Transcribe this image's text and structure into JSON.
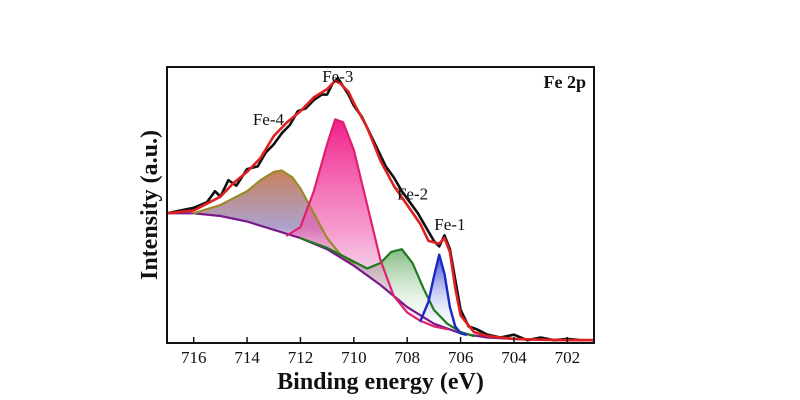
{
  "chart_data": {
    "type": "line",
    "title": "Fe 2p",
    "xlabel": "Binding energy (eV)",
    "ylabel": "Intensity (a.u.)",
    "x_reversed": true,
    "xlim": [
      717,
      701
    ],
    "ylim": [
      0,
      1
    ],
    "y_ticks_labeled": false,
    "xticks": [
      716,
      714,
      712,
      710,
      708,
      706,
      704,
      702
    ],
    "xtick_labels": [
      "716",
      "714",
      "712",
      "710",
      "708",
      "706",
      "704",
      "702"
    ],
    "colors": {
      "raw": "#111111",
      "envelope": "#e02020",
      "background": "#7a1a8a",
      "fe1": "#1a28c8",
      "fe2": "#1e7a1e",
      "fe3": "#e0206e",
      "fe4": "#9a8a2a"
    },
    "annotations": [
      {
        "text": "Fe-4",
        "x": 713.2,
        "y": 0.79
      },
      {
        "text": "Fe-3",
        "x": 710.6,
        "y": 0.945
      },
      {
        "text": "Fe-2",
        "x": 707.8,
        "y": 0.52
      },
      {
        "text": "Fe-1",
        "x": 706.4,
        "y": 0.41
      }
    ],
    "series": [
      {
        "role": "background",
        "x": [
          717,
          716,
          715,
          714,
          713,
          712,
          711,
          710,
          709,
          708,
          707,
          706,
          705,
          704,
          703,
          702,
          701
        ],
        "y": [
          0.47,
          0.47,
          0.46,
          0.44,
          0.41,
          0.38,
          0.34,
          0.28,
          0.21,
          0.13,
          0.07,
          0.035,
          0.02,
          0.015,
          0.012,
          0.01,
          0.01
        ]
      },
      {
        "role": "Fe-1",
        "x": [
          707.5,
          707.2,
          707.0,
          706.8,
          706.6,
          706.4,
          706.2,
          706.0,
          705.8
        ],
        "y": [
          0.08,
          0.15,
          0.24,
          0.32,
          0.25,
          0.13,
          0.06,
          0.035,
          0.03
        ]
      },
      {
        "role": "Fe-2",
        "x": [
          712,
          711,
          710,
          709.5,
          709,
          708.6,
          708.2,
          707.8,
          707.4,
          707,
          706.5,
          706,
          705.5
        ],
        "y": [
          0.38,
          0.345,
          0.295,
          0.27,
          0.29,
          0.33,
          0.34,
          0.29,
          0.2,
          0.12,
          0.07,
          0.04,
          0.025
        ]
      },
      {
        "role": "Fe-3",
        "x": [
          712.5,
          712,
          711.5,
          711,
          710.7,
          710.4,
          710,
          709.5,
          709,
          708.5,
          708,
          707.5,
          707,
          706.5
        ],
        "y": [
          0.39,
          0.42,
          0.55,
          0.72,
          0.81,
          0.8,
          0.7,
          0.5,
          0.3,
          0.17,
          0.11,
          0.08,
          0.06,
          0.05
        ]
      },
      {
        "role": "Fe-4",
        "x": [
          716,
          715,
          714,
          713.5,
          713,
          712.7,
          712.3,
          712,
          711.5,
          711,
          710.5,
          710
        ],
        "y": [
          0.47,
          0.5,
          0.55,
          0.59,
          0.62,
          0.625,
          0.6,
          0.56,
          0.47,
          0.38,
          0.32,
          0.29
        ]
      },
      {
        "role": "envelope",
        "x": [
          717,
          716,
          715,
          714.5,
          714,
          713.5,
          713,
          712.5,
          712,
          711.5,
          711,
          710.7,
          710.5,
          710.2,
          710,
          709.5,
          709,
          708.5,
          708,
          707.5,
          707.2,
          706.8,
          706.6,
          706.4,
          706.2,
          706,
          705.5,
          705,
          704,
          703,
          702,
          701
        ],
        "y": [
          0.47,
          0.48,
          0.53,
          0.58,
          0.62,
          0.67,
          0.75,
          0.8,
          0.84,
          0.89,
          0.92,
          0.95,
          0.94,
          0.91,
          0.87,
          0.78,
          0.66,
          0.57,
          0.5,
          0.43,
          0.37,
          0.36,
          0.38,
          0.33,
          0.2,
          0.1,
          0.04,
          0.025,
          0.015,
          0.012,
          0.01,
          0.01
        ]
      },
      {
        "role": "raw",
        "x": [
          717,
          716.5,
          716,
          715.5,
          715.2,
          715,
          714.7,
          714.4,
          714,
          713.6,
          713.3,
          713,
          712.7,
          712.4,
          712.1,
          711.8,
          711.5,
          711.2,
          711,
          710.8,
          710.6,
          710.4,
          710.2,
          710,
          709.7,
          709.4,
          709.1,
          708.8,
          708.5,
          708.2,
          707.9,
          707.6,
          707.3,
          707,
          706.8,
          706.6,
          706.4,
          706.2,
          706,
          705.7,
          705.4,
          705,
          704.5,
          704,
          703.5,
          703,
          702.5,
          702,
          701.5,
          701
        ],
        "y": [
          0.47,
          0.48,
          0.49,
          0.51,
          0.55,
          0.53,
          0.59,
          0.57,
          0.63,
          0.64,
          0.69,
          0.72,
          0.76,
          0.79,
          0.84,
          0.85,
          0.88,
          0.9,
          0.9,
          0.94,
          0.96,
          0.93,
          0.9,
          0.86,
          0.82,
          0.76,
          0.7,
          0.64,
          0.6,
          0.55,
          0.51,
          0.47,
          0.42,
          0.37,
          0.35,
          0.39,
          0.34,
          0.23,
          0.12,
          0.06,
          0.05,
          0.03,
          0.02,
          0.03,
          0.01,
          0.02,
          0.01,
          0.015,
          0.01,
          0.01
        ]
      }
    ]
  }
}
